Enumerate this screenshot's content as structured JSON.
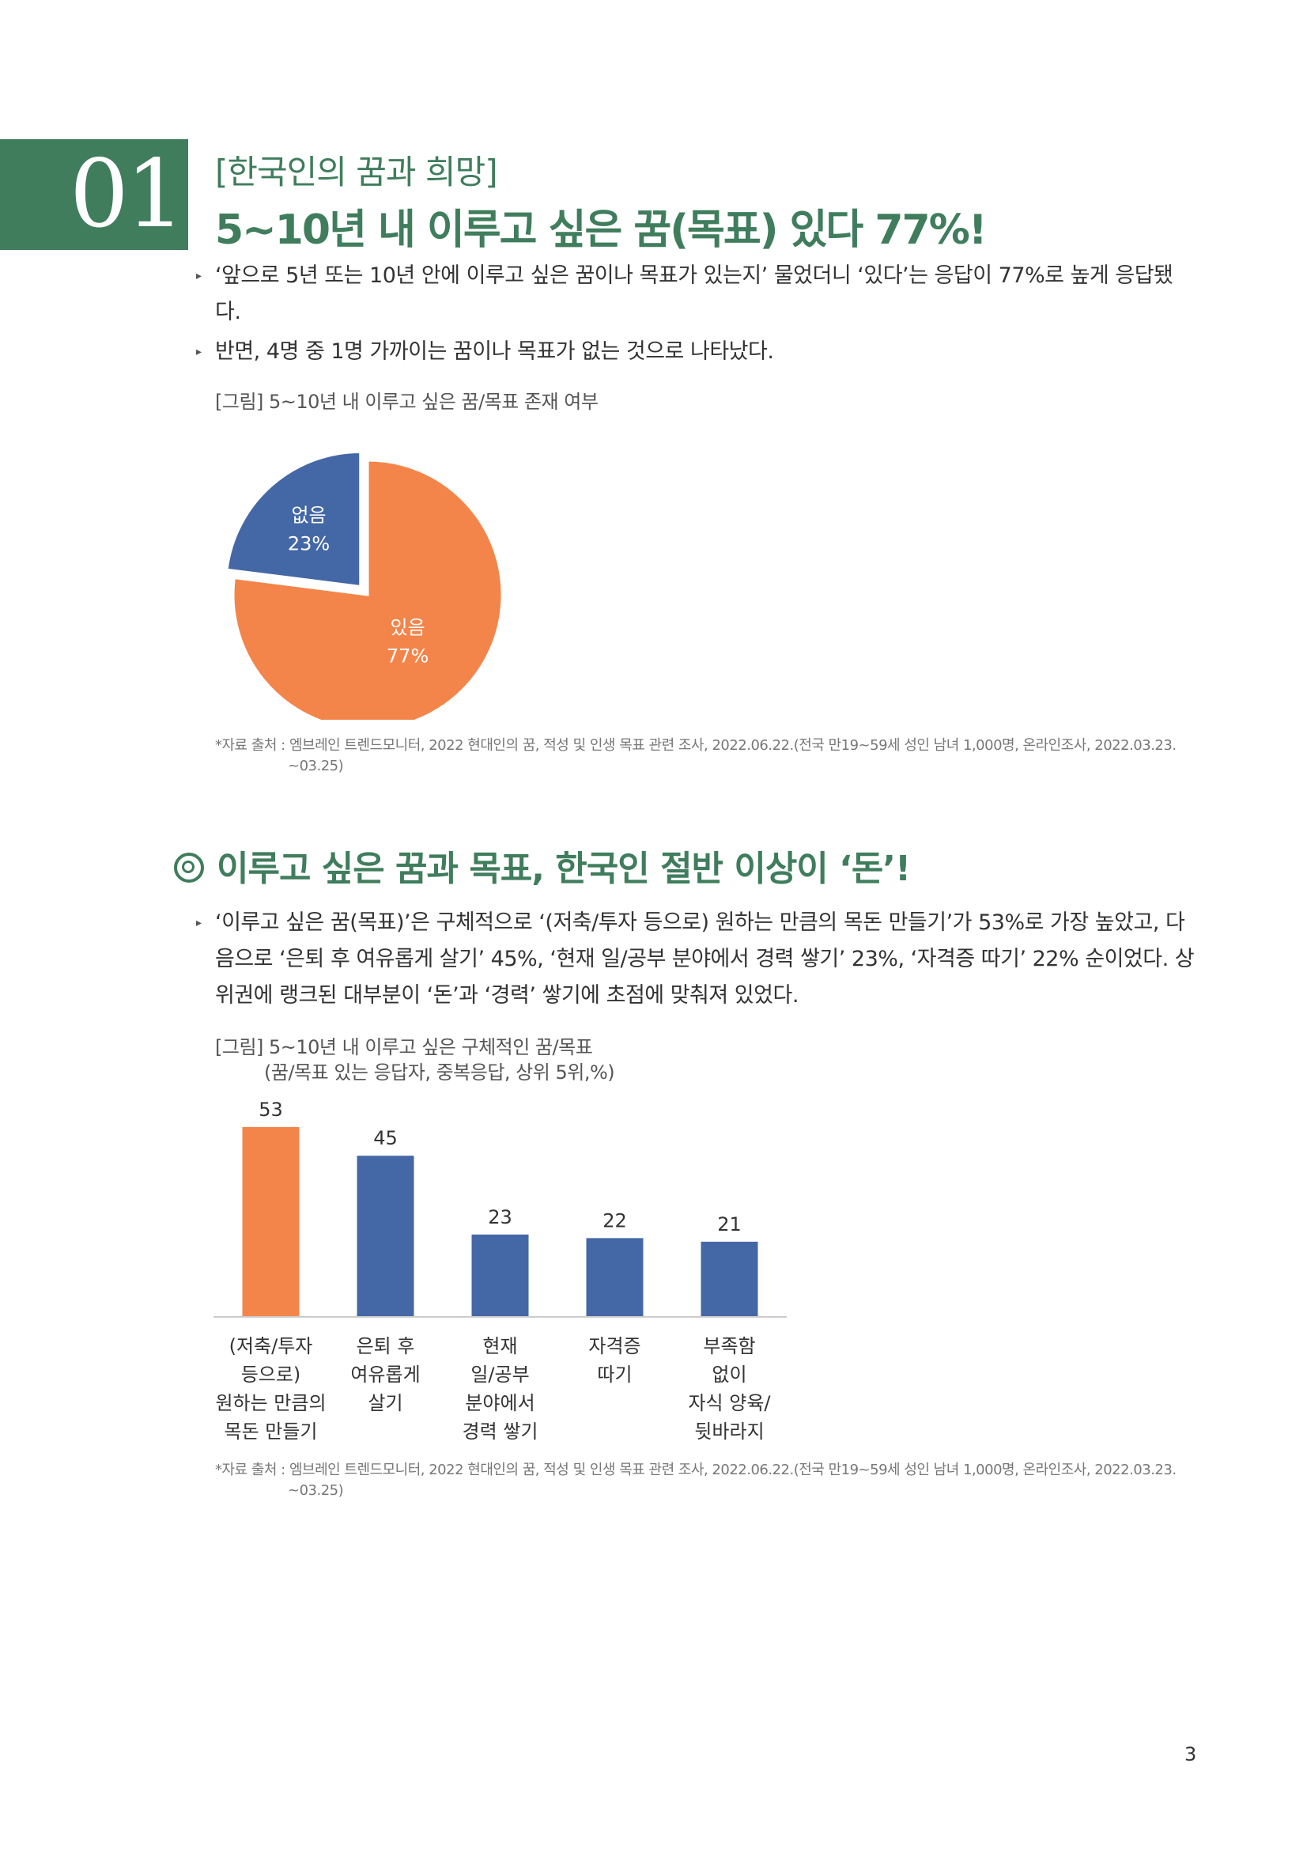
{
  "section_number": "01",
  "kicker": "[한국인의 꿈과 희망]",
  "headline": "5~10년 내 이루고 싶은 꿈(목표) 있다 77%!",
  "bullets_top": [
    {
      "text": "‘앞으로 5년 또는 10년 안에 이루고 싶은 꿈이나 목표가 있는지’ 물었더니 ‘있다’는 응답이 77%로 높게 응답됐다."
    },
    {
      "text": "반면, 4명 중 1명 가까이는 꿈이나 목표가 없는 것으로 나타났다."
    }
  ],
  "figure1_caption": "[그림] 5~10년 내 이루고 싶은 꿈/목표 존재 여부",
  "source_line1": "*자료 출처 : 엠브레인 트렌드모니터, 2022 현대인의 꿈, 적성 및 인생 목표 관련 조사, 2022.06.22.(전국 만19~59세 성인 남녀 1,000명, 온라인조사, 2022.03.23.",
  "source_line2": "~03.25)",
  "section2_title": "이루고 싶은 꿈과 목표, 한국인 절반 이상이 ‘돈’!",
  "bullets_mid": [
    {
      "text": "‘이루고 싶은 꿈(목표)’은 구체적으로 ‘(저축/투자 등으로) 원하는 만큼의 목돈 만들기’가 53%로 가장 높았고, 다음으로 ‘은퇴 후 여유롭게 살기’ 45%, ‘현재 일/공부 분야에서 경력 쌓기’ 23%, ‘자격증 따기’ 22% 순이었다. 상위권에 랭크된 대부분이 ‘돈’과 ‘경력’ 쌓기에 초점에 맞춰져 있었다."
    }
  ],
  "figure2_caption_line1": "[그림] 5~10년 내 이루고 싶은 구체적인 꿈/목표",
  "figure2_caption_line2": "(꿈/목표 있는 응답자, 중복응답, 상위 5위,%)",
  "page_number": "3",
  "colors": {
    "green": "#3f7d5c",
    "orange": "#f4854a",
    "blue": "#4467a6"
  },
  "chart_data": [
    {
      "type": "pie",
      "slices": [
        {
          "label": "없음",
          "value": 23,
          "value_label": "23%",
          "color": "#4467a6",
          "exploded": true
        },
        {
          "label": "있음",
          "value": 77,
          "value_label": "77%",
          "color": "#f4854a",
          "exploded": false
        }
      ]
    },
    {
      "type": "bar",
      "categories": [
        [
          "(저축/투자",
          "등으로)",
          "원하는 만큼의",
          "목돈 만들기"
        ],
        [
          "은퇴 후",
          "여유롭게",
          "살기"
        ],
        [
          "현재",
          "일/공부",
          "분야에서",
          "경력 쌓기"
        ],
        [
          "자격증",
          "따기"
        ],
        [
          "부족함",
          "없이",
          "자식 양육/",
          "뒷바라지"
        ]
      ],
      "values": [
        53,
        45,
        23,
        22,
        21
      ],
      "bar_colors": [
        "#f4854a",
        "#4467a6",
        "#4467a6",
        "#4467a6",
        "#4467a6"
      ],
      "ylim": [
        0,
        53
      ],
      "grid": false,
      "legend": "none"
    }
  ]
}
